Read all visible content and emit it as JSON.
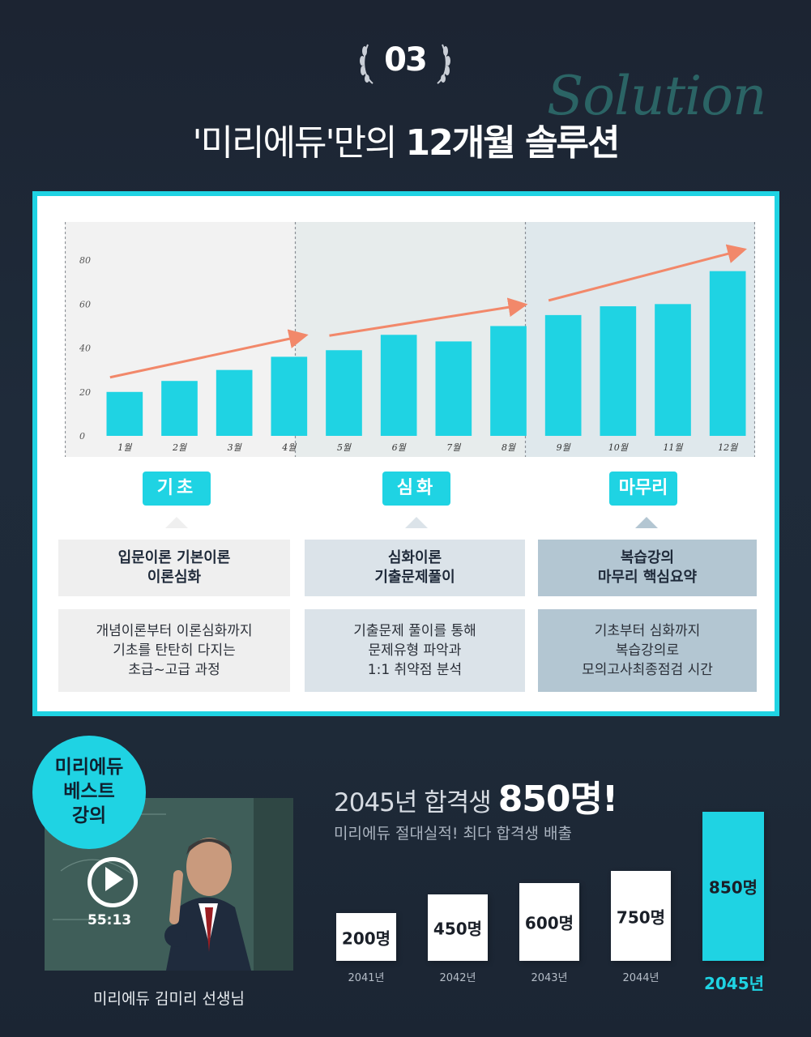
{
  "badge": {
    "number": "03"
  },
  "header": {
    "script_word": "Solution",
    "title_regular": "'미리에듀'만의 ",
    "title_bold": "12개월 솔루션"
  },
  "chart_data": {
    "type": "bar",
    "categories": [
      "1월",
      "2월",
      "3월",
      "4월",
      "5월",
      "6월",
      "7월",
      "8월",
      "9월",
      "10월",
      "11월",
      "12월"
    ],
    "values": [
      20,
      25,
      30,
      36,
      39,
      46,
      43,
      50,
      55,
      59,
      60,
      75
    ],
    "y_ticks": [
      "0",
      "20",
      "40",
      "60",
      "80"
    ],
    "ylim": [
      0,
      90
    ],
    "grid": false
  },
  "phases": [
    {
      "pill": "기초",
      "title": "입문이론 기본이론\n이론심화",
      "desc": "개념이론부터 이론심화까지\n기초를 탄탄히 다지는\n초급~고급 과정"
    },
    {
      "pill": "심화",
      "title": "심화이론\n기출문제풀이",
      "desc": "기출문제 풀이를 통해\n문제유형 파악과\n1:1 취약점 분석"
    },
    {
      "pill": "마무리",
      "title": "복습강의\n마무리 핵심요약",
      "desc": "기초부터 심화까지\n복습강의로\n모의고사최종점검 시간"
    }
  ],
  "colors": {
    "accent": "#1fd3e3",
    "arrow": "#f2886a"
  },
  "lecture": {
    "badge": "미리에듀\n베스트\n강의",
    "duration": "55:13",
    "teacher": "미리에듀 김미리 선생님"
  },
  "passers": {
    "title_prefix": "2045년 합격생 ",
    "title_highlight": "850명!",
    "subtitle": "미리에듀 절대실적! 최다 합격생 배출",
    "bars": [
      {
        "year": "2041년",
        "count": "200명",
        "value": 200
      },
      {
        "year": "2042년",
        "count": "450명",
        "value": 450
      },
      {
        "year": "2043년",
        "count": "600명",
        "value": 600
      },
      {
        "year": "2044년",
        "count": "750명",
        "value": 750
      },
      {
        "year": "2045년",
        "count": "850명",
        "value": 850
      }
    ]
  }
}
